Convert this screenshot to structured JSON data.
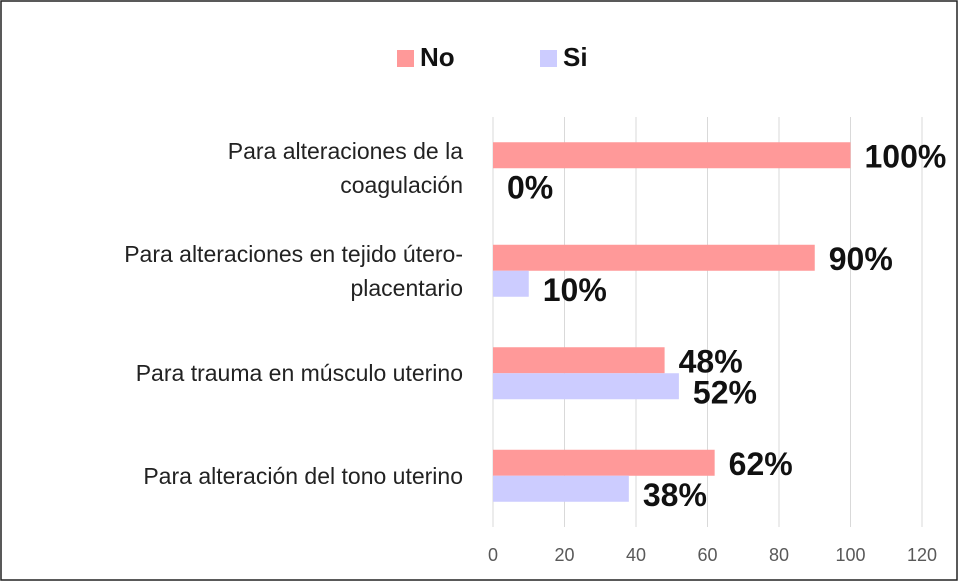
{
  "chart_data": {
    "type": "bar",
    "orientation": "horizontal",
    "categories": [
      "Para alteraciones de la\ncoagulación",
      "Para alteraciones en tejido útero-\nplacentario",
      "Para trauma en músculo uterino",
      "Para alteración del tono uterino"
    ],
    "series": [
      {
        "name": "No",
        "color": "#ff9999",
        "values": [
          100,
          90,
          48,
          62
        ],
        "value_labels": [
          "100%",
          "90%",
          "48%",
          "62%"
        ]
      },
      {
        "name": "Si",
        "color": "#ccccff",
        "values": [
          0,
          10,
          52,
          38
        ],
        "value_labels": [
          "0%",
          "10%",
          "52%",
          "38%"
        ]
      }
    ],
    "xlim": [
      0,
      120
    ],
    "xticks": [
      0,
      20,
      40,
      60,
      80,
      100,
      120
    ],
    "grid": true,
    "legend": "top"
  }
}
